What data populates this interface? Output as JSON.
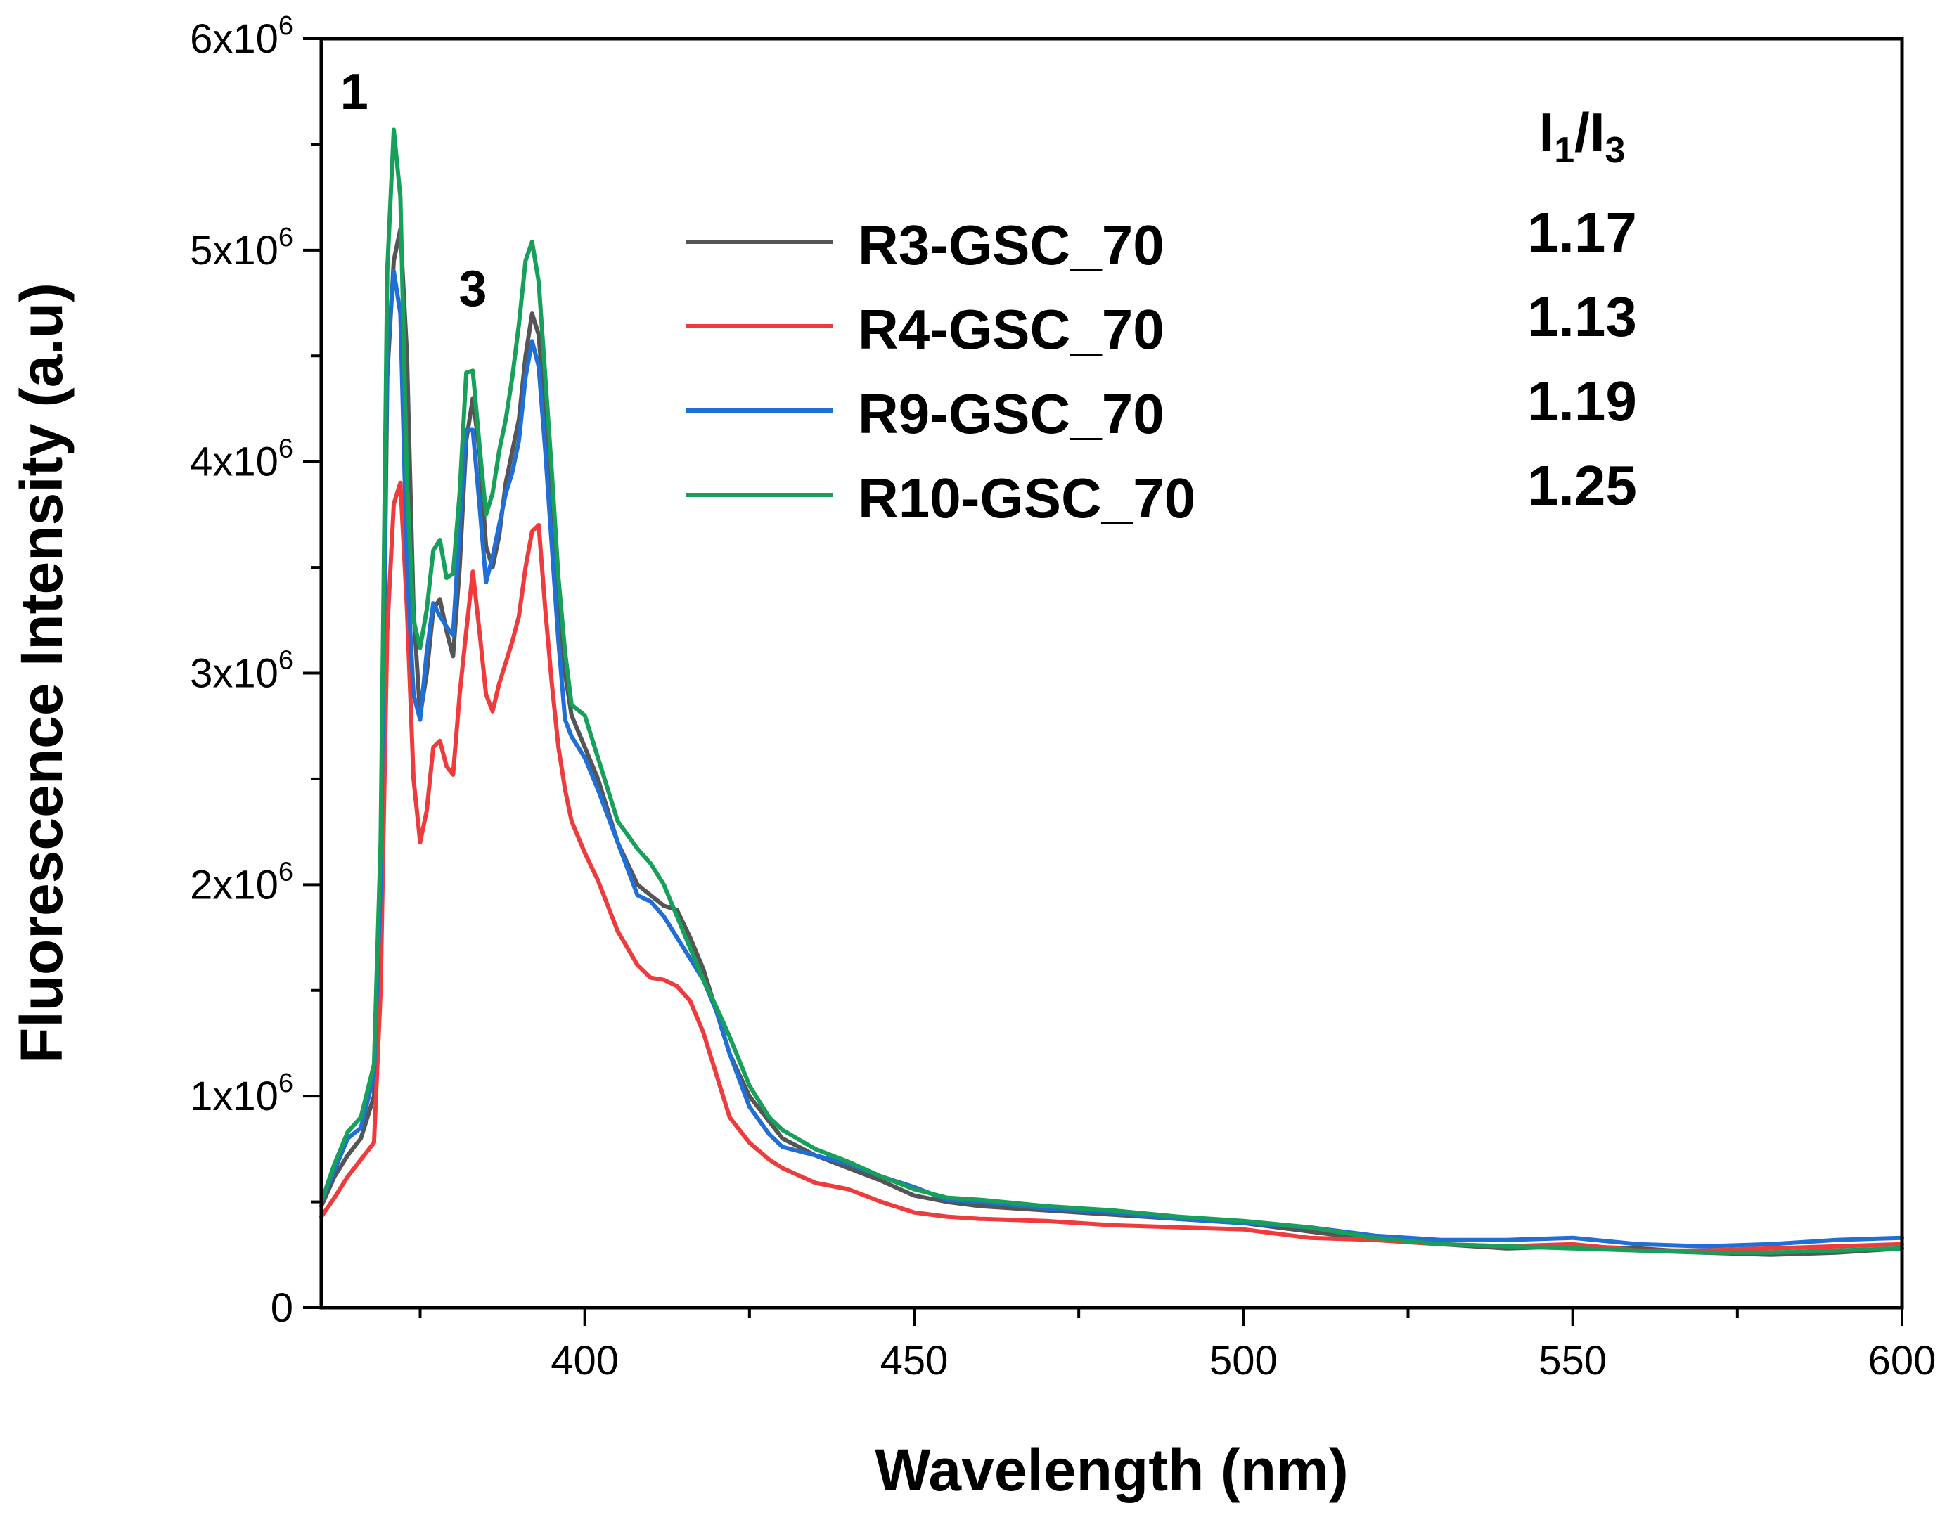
{
  "chart_data": {
    "type": "line",
    "xlabel": "Wavelength (nm)",
    "ylabel": "Fluorescence Intensity (a.u)",
    "xlim": [
      360,
      600
    ],
    "ylim": [
      0,
      6000000
    ],
    "x_ticks": [
      400,
      450,
      500,
      550,
      600
    ],
    "x_tick_labels": [
      "400",
      "450",
      "500",
      "550",
      "600"
    ],
    "y_tick_labels": [
      {
        "value": 0,
        "base": "0",
        "exp": ""
      },
      {
        "value": 1000000,
        "base": "1x10",
        "exp": "6"
      },
      {
        "value": 2000000,
        "base": "2x10",
        "exp": "6"
      },
      {
        "value": 3000000,
        "base": "3x10",
        "exp": "6"
      },
      {
        "value": 4000000,
        "base": "4x10",
        "exp": "6"
      },
      {
        "value": 5000000,
        "base": "5x10",
        "exp": "6"
      },
      {
        "value": 6000000,
        "base": "6x10",
        "exp": "6"
      }
    ],
    "peak_labels": [
      {
        "text": "1",
        "x": 365,
        "y": 5750000
      },
      {
        "text": "3",
        "x": 383,
        "y": 4820000
      }
    ],
    "ratio_header": {
      "main1": "I",
      "sub1": "1",
      "slash": "/I",
      "sub2": "3"
    },
    "legend_position": "top-center",
    "series": [
      {
        "name": "R3-GSC_70",
        "ratio": "1.17",
        "color": "#555555",
        "x": [
          360,
          362,
          364,
          366,
          368,
          369,
          370,
          371,
          372,
          373,
          374,
          375,
          376,
          377,
          378,
          379,
          380,
          381,
          382,
          383,
          384,
          385,
          386,
          387,
          388,
          389,
          390,
          391,
          392,
          393,
          394,
          395,
          396,
          397,
          398,
          400,
          402,
          405,
          408,
          410,
          412,
          414,
          416,
          418,
          420,
          422,
          425,
          428,
          430,
          435,
          440,
          445,
          450,
          455,
          460,
          470,
          480,
          490,
          500,
          510,
          520,
          530,
          540,
          550,
          560,
          570,
          580,
          590,
          600
        ],
        "y": [
          480000,
          620000,
          720000,
          800000,
          1000000,
          1800000,
          4400000,
          4950000,
          5100000,
          4500000,
          3300000,
          2800000,
          3000000,
          3300000,
          3350000,
          3200000,
          3080000,
          3500000,
          4100000,
          4300000,
          4050000,
          3600000,
          3500000,
          3650000,
          3900000,
          4050000,
          4200000,
          4500000,
          4700000,
          4600000,
          4200000,
          3800000,
          3400000,
          3000000,
          2800000,
          2650000,
          2500000,
          2200000,
          2000000,
          1950000,
          1900000,
          1880000,
          1750000,
          1600000,
          1400000,
          1200000,
          1000000,
          880000,
          800000,
          720000,
          660000,
          600000,
          530000,
          500000,
          480000,
          460000,
          440000,
          420000,
          400000,
          360000,
          320000,
          300000,
          280000,
          290000,
          280000,
          260000,
          250000,
          260000,
          280000
        ]
      },
      {
        "name": "R4-GSC_70",
        "ratio": "1.13",
        "color": "#ef3b3b",
        "x": [
          360,
          362,
          364,
          366,
          368,
          369,
          370,
          371,
          372,
          373,
          374,
          375,
          376,
          377,
          378,
          379,
          380,
          381,
          382,
          383,
          384,
          385,
          386,
          387,
          388,
          389,
          390,
          391,
          392,
          393,
          394,
          395,
          396,
          397,
          398,
          400,
          402,
          405,
          408,
          410,
          412,
          414,
          416,
          418,
          420,
          422,
          425,
          428,
          430,
          435,
          440,
          445,
          450,
          455,
          460,
          470,
          480,
          490,
          500,
          510,
          520,
          530,
          540,
          550,
          560,
          570,
          580,
          590,
          600
        ],
        "y": [
          430000,
          520000,
          620000,
          700000,
          780000,
          1500000,
          3200000,
          3800000,
          3900000,
          3300000,
          2500000,
          2200000,
          2350000,
          2650000,
          2680000,
          2560000,
          2520000,
          2900000,
          3200000,
          3480000,
          3200000,
          2900000,
          2820000,
          2950000,
          3050000,
          3150000,
          3270000,
          3500000,
          3670000,
          3700000,
          3300000,
          2950000,
          2650000,
          2450000,
          2300000,
          2150000,
          2020000,
          1780000,
          1620000,
          1560000,
          1550000,
          1520000,
          1450000,
          1300000,
          1100000,
          900000,
          780000,
          700000,
          660000,
          590000,
          560000,
          500000,
          450000,
          430000,
          420000,
          410000,
          390000,
          380000,
          370000,
          330000,
          320000,
          300000,
          290000,
          300000,
          270000,
          270000,
          280000,
          290000,
          300000
        ]
      },
      {
        "name": "R9-GSC_70",
        "ratio": "1.19",
        "color": "#1f6fd6",
        "x": [
          360,
          362,
          364,
          366,
          368,
          369,
          370,
          371,
          372,
          373,
          374,
          375,
          376,
          377,
          378,
          379,
          380,
          381,
          382,
          383,
          384,
          385,
          386,
          387,
          388,
          389,
          390,
          391,
          392,
          393,
          394,
          395,
          396,
          397,
          398,
          400,
          402,
          405,
          408,
          410,
          412,
          414,
          416,
          418,
          420,
          422,
          425,
          428,
          430,
          435,
          440,
          445,
          450,
          455,
          460,
          470,
          480,
          490,
          500,
          510,
          520,
          530,
          540,
          550,
          560,
          570,
          580,
          590,
          600
        ],
        "y": [
          500000,
          650000,
          800000,
          850000,
          1100000,
          2000000,
          4500000,
          4900000,
          4700000,
          3500000,
          2900000,
          2780000,
          3100000,
          3330000,
          3270000,
          3220000,
          3180000,
          3700000,
          4150000,
          4150000,
          3800000,
          3430000,
          3550000,
          3700000,
          3850000,
          3950000,
          4100000,
          4400000,
          4570000,
          4450000,
          4050000,
          3600000,
          3150000,
          2780000,
          2700000,
          2600000,
          2450000,
          2200000,
          1950000,
          1920000,
          1850000,
          1750000,
          1650000,
          1550000,
          1400000,
          1200000,
          950000,
          820000,
          760000,
          720000,
          680000,
          620000,
          570000,
          510000,
          500000,
          470000,
          450000,
          420000,
          400000,
          380000,
          340000,
          320000,
          320000,
          330000,
          300000,
          290000,
          300000,
          320000,
          330000
        ]
      },
      {
        "name": "R10-GSC_70",
        "ratio": "1.25",
        "color": "#16a05a",
        "x": [
          360,
          362,
          364,
          366,
          368,
          369,
          370,
          371,
          372,
          373,
          374,
          375,
          376,
          377,
          378,
          379,
          380,
          381,
          382,
          383,
          384,
          385,
          386,
          387,
          388,
          389,
          390,
          391,
          392,
          393,
          394,
          395,
          396,
          397,
          398,
          400,
          402,
          405,
          408,
          410,
          412,
          414,
          416,
          418,
          420,
          422,
          425,
          428,
          430,
          435,
          440,
          445,
          450,
          455,
          460,
          470,
          480,
          490,
          500,
          510,
          520,
          530,
          540,
          550,
          560,
          570,
          580,
          590,
          600
        ],
        "y": [
          500000,
          680000,
          830000,
          900000,
          1150000,
          2200000,
          4900000,
          5570000,
          5250000,
          3900000,
          3250000,
          3120000,
          3300000,
          3580000,
          3630000,
          3450000,
          3470000,
          3850000,
          4420000,
          4430000,
          4080000,
          3750000,
          3850000,
          4050000,
          4200000,
          4400000,
          4650000,
          4950000,
          5040000,
          4850000,
          4400000,
          3950000,
          3450000,
          3100000,
          2850000,
          2800000,
          2600000,
          2300000,
          2170000,
          2100000,
          2000000,
          1850000,
          1700000,
          1550000,
          1420000,
          1280000,
          1050000,
          900000,
          840000,
          750000,
          690000,
          620000,
          560000,
          520000,
          510000,
          480000,
          460000,
          430000,
          410000,
          380000,
          330000,
          300000,
          290000,
          280000,
          270000,
          260000,
          260000,
          270000,
          280000
        ]
      }
    ]
  }
}
